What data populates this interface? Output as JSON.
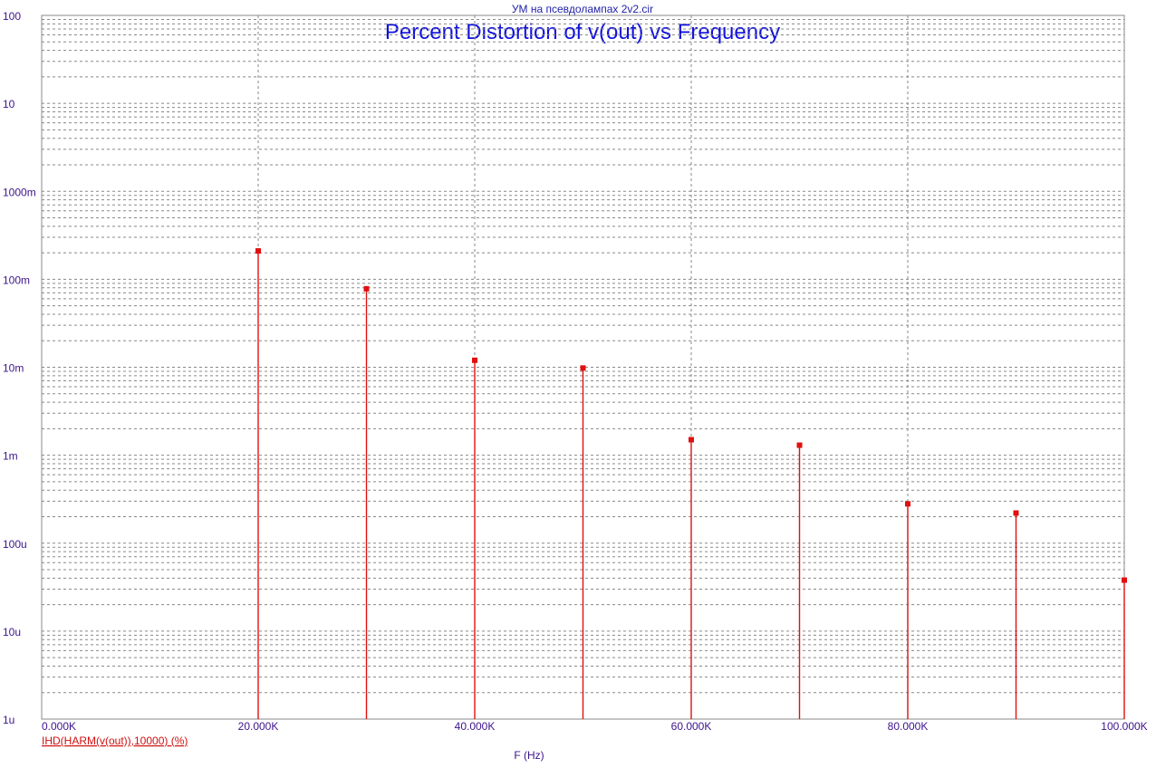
{
  "file_name": "УМ на псевдолампах 2v2.cir",
  "colors": {
    "series": "#e01010",
    "grid": "#888888",
    "axis_text": "#3c148c",
    "title": "#1010dd"
  },
  "chart_data": {
    "type": "scatter",
    "title": "Percent Distortion of v(out) vs Frequency",
    "xlabel": "F (Hz)",
    "ylabel": "",
    "xlim": [
      0,
      100000
    ],
    "ylim": [
      1e-06,
      100
    ],
    "y_scale": "log",
    "grid": true,
    "x_tick_labels": [
      "0.000K",
      "20.000K",
      "40.000K",
      "60.000K",
      "80.000K",
      "100.000K"
    ],
    "y_tick_labels": [
      "100",
      "10",
      "1000m",
      "100m",
      "10m",
      "1m",
      "100u",
      "10u",
      "1u"
    ],
    "series": [
      {
        "name": "IHD(HARM(v(out)),10000) (%)",
        "style": "stem",
        "x": [
          20000,
          30000,
          40000,
          50000,
          60000,
          70000,
          80000,
          90000,
          100000
        ],
        "y": [
          0.21,
          0.078,
          0.012,
          0.0098,
          0.0015,
          0.0013,
          0.00028,
          0.00022,
          3.8e-05
        ]
      }
    ]
  }
}
